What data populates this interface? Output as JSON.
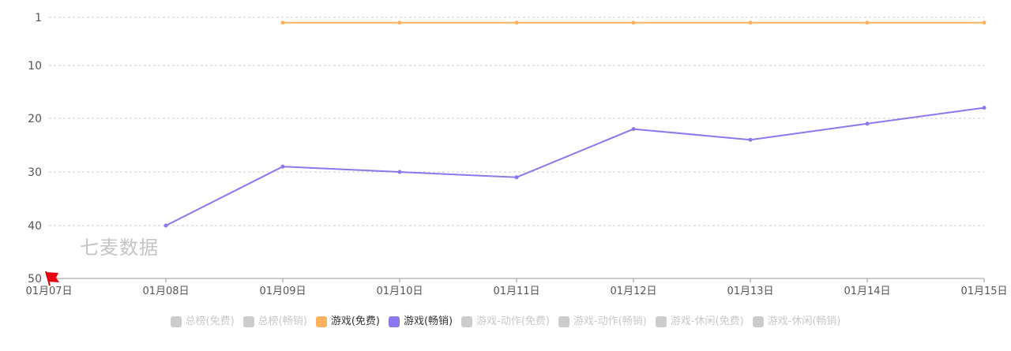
{
  "chart_data": {
    "type": "line",
    "categories": [
      "01月07日",
      "01月08日",
      "01月09日",
      "01月10日",
      "01月11日",
      "01月12日",
      "01月13日",
      "01月14日",
      "01月15日"
    ],
    "y_axis": {
      "ticks": [
        1,
        10,
        20,
        30,
        40,
        50
      ],
      "range": [
        1,
        50
      ],
      "inverted": true
    },
    "grid": true,
    "legend_position": "bottom",
    "series": [
      {
        "name": "游戏(免费)",
        "color": "#ffb25e",
        "values": [
          null,
          null,
          2,
          2,
          2,
          2,
          2,
          2,
          2
        ]
      },
      {
        "name": "游戏(畅销)",
        "color": "#8c78ee",
        "values": [
          null,
          40,
          29,
          30,
          31,
          22,
          24,
          21,
          18
        ]
      }
    ]
  },
  "legend": {
    "items": [
      {
        "label": "总榜(免费)",
        "color": "#cccccc",
        "text_color": "#c8c8c8"
      },
      {
        "label": "总榜(畅销)",
        "color": "#cccccc",
        "text_color": "#c8c8c8"
      },
      {
        "label": "游戏(免费)",
        "color": "#ffb25e",
        "text_color": "#333333"
      },
      {
        "label": "游戏(畅销)",
        "color": "#8c78ee",
        "text_color": "#333333"
      },
      {
        "label": "游戏-动作(免费)",
        "color": "#cccccc",
        "text_color": "#c8c8c8"
      },
      {
        "label": "游戏-动作(畅销)",
        "color": "#cccccc",
        "text_color": "#c8c8c8"
      },
      {
        "label": "游戏-休闲(免费)",
        "color": "#cccccc",
        "text_color": "#c8c8c8"
      },
      {
        "label": "游戏-休闲(畅销)",
        "color": "#cccccc",
        "text_color": "#c8c8c8"
      }
    ]
  },
  "watermark": "七麦数据",
  "marker_icon": "red-flag-icon"
}
